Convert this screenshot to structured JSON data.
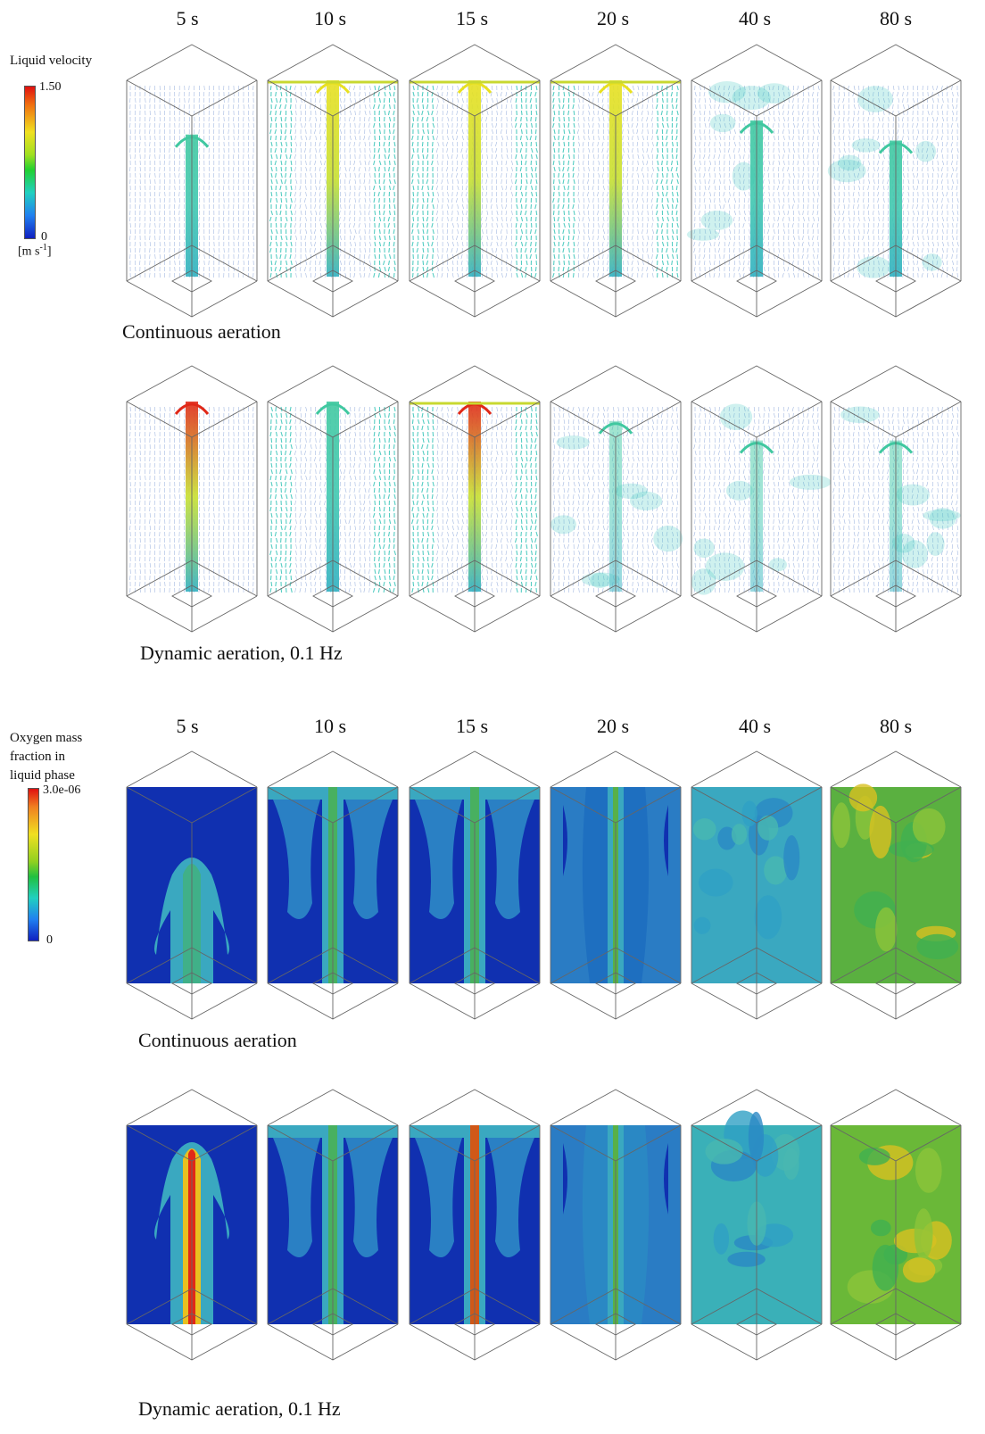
{
  "times": [
    "5 s",
    "10 s",
    "15 s",
    "20 s",
    "40 s",
    "80 s"
  ],
  "velocity_section": {
    "legend_title": "Liquid velocity",
    "max_label": "1.50",
    "min_label": "0",
    "unit_label": "[m s-1]",
    "rows": [
      {
        "label": "Continuous aeration"
      },
      {
        "label": "Dynamic aeration, 0.1 Hz"
      }
    ]
  },
  "oxygen_section": {
    "legend_title_lines": [
      "Oxygen mass",
      "fraction in",
      "liquid phase"
    ],
    "max_label": "3.0e-06",
    "min_label": "0",
    "rows": [
      {
        "label": "Continuous aeration"
      },
      {
        "label": "Dynamic aeration, 0.1 Hz"
      }
    ]
  },
  "colors": {
    "deep_blue": "#1030b0",
    "mid_blue": "#1e6fc0",
    "cyan": "#3fb8c8",
    "green": "#4ab040",
    "yellow_green": "#8cc43a",
    "jet_red": "#e02818",
    "jet_yellow": "#e8e020",
    "frame_gray": "#666666"
  }
}
